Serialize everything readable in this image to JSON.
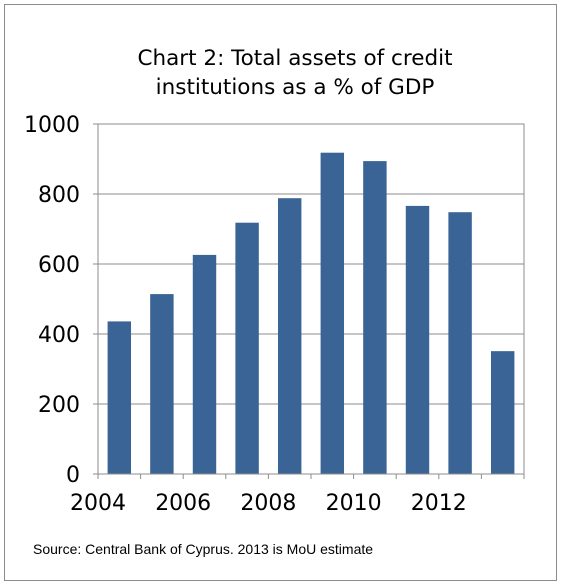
{
  "chart_data": {
    "type": "bar",
    "title_lines": [
      "Chart 2: Total assets of credit",
      "institutions as a % of GDP"
    ],
    "categories": [
      "2004",
      "2005",
      "2006",
      "2007",
      "2008",
      "2009",
      "2010",
      "2011",
      "2012",
      "2013"
    ],
    "values": [
      436,
      514,
      626,
      718,
      788,
      918,
      894,
      766,
      748,
      351
    ],
    "x_tick_labels": [
      "2004",
      "2006",
      "2008",
      "2010",
      "2012"
    ],
    "y_tick_labels": [
      "0",
      "200",
      "400",
      "600",
      "800",
      "1000"
    ],
    "ylim": [
      0,
      1000
    ],
    "grid": true,
    "bar_color": "#3b6496",
    "source": "Source: Central Bank of Cyprus. 2013 is MoU estimate"
  }
}
